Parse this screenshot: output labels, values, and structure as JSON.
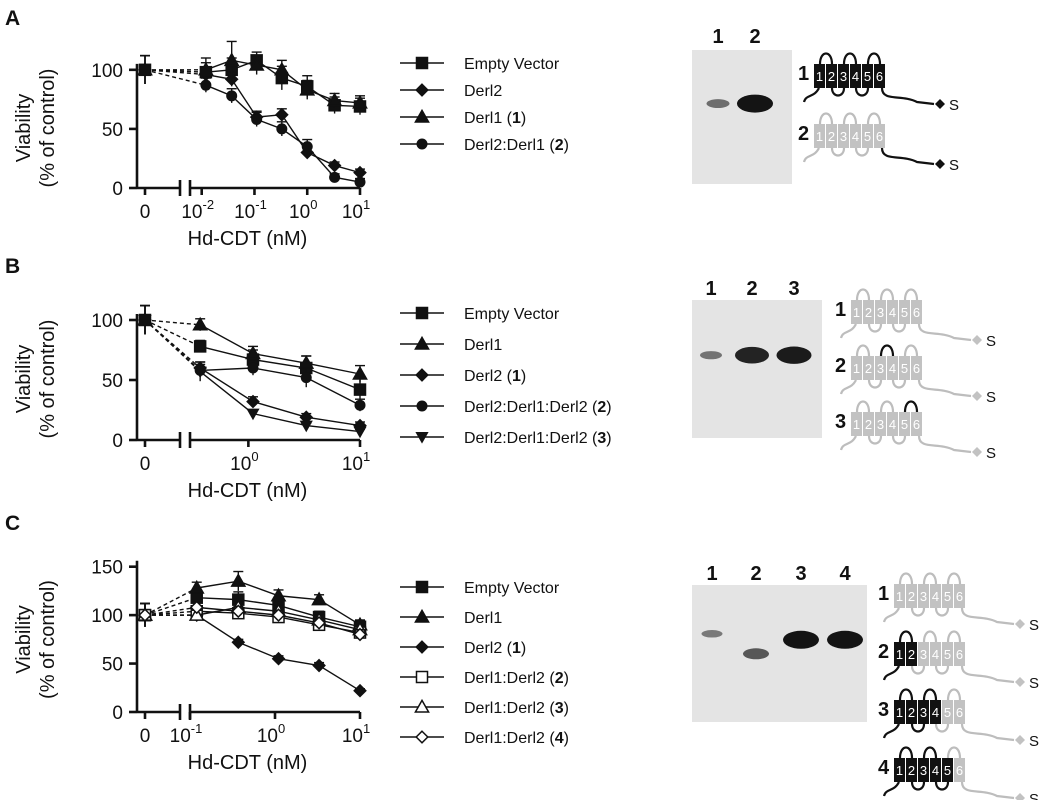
{
  "colors": {
    "dark": "#111111",
    "light": "#c2c2c2",
    "light_stroke": "#bdbdbd",
    "blot_bg": "#e4e4e4",
    "band": "#141414"
  },
  "chart_data": [
    {
      "panel": "A",
      "type": "line",
      "ylabel_lines": [
        "Viability",
        "(% of control)"
      ],
      "xlabel": "Hd-CDT (nM)",
      "xscale": "log",
      "xlim": [
        0.006,
        10
      ],
      "ylim": [
        0,
        110
      ],
      "yticks": [
        0,
        50,
        100
      ],
      "xticks": [
        {
          "v": 0.01,
          "base": "10",
          "exp": "-2"
        },
        {
          "v": 0.1,
          "base": "10",
          "exp": "-1"
        },
        {
          "v": 1,
          "base": "10",
          "exp": "0"
        },
        {
          "v": 10,
          "base": "10",
          "exp": "1"
        }
      ],
      "zero_label": "0",
      "x": [
        0.012,
        0.037,
        0.11,
        0.33,
        1.0,
        3.3,
        10
      ],
      "series": [
        {
          "label": "Empty Vector",
          "marker": "square",
          "zero": 100,
          "values": [
            98,
            100,
            108,
            93,
            86,
            70,
            69
          ],
          "err": [
            8,
            10,
            7,
            10,
            9,
            7,
            7
          ]
        },
        {
          "label": "Derl2",
          "marker": "diamond",
          "zero": 100,
          "values": [
            96,
            92,
            60,
            62,
            30,
            19,
            13
          ],
          "err": [
            5,
            6,
            5,
            5,
            5,
            3,
            3
          ]
        },
        {
          "label": "Derl1 (",
          "label_bold": "1",
          "label_end": ")",
          "marker": "triangle",
          "zero": 100,
          "values": [
            100,
            108,
            104,
            100,
            83,
            74,
            72
          ],
          "err": [
            10,
            16,
            8,
            8,
            8,
            6,
            6
          ]
        },
        {
          "label": "Derl2:Derl1 (",
          "label_bold": "2",
          "label_end": ")",
          "marker": "circle",
          "zero": 100,
          "values": [
            87,
            78,
            58,
            50,
            35,
            9,
            5
          ],
          "err": [
            6,
            6,
            6,
            6,
            6,
            3,
            3
          ]
        }
      ],
      "blot": {
        "lanes": [
          "1",
          "2"
        ],
        "bands": [
          0.35,
          1.0
        ]
      },
      "constructs": [
        {
          "num": "1",
          "tm": [
            "1",
            "2",
            "3",
            "4",
            "5",
            "6"
          ],
          "dark_tm": [
            1,
            2,
            3,
            4,
            5,
            6
          ],
          "dark_loops": [
            1,
            2,
            3,
            4,
            5,
            6
          ],
          "dark_tail": true
        },
        {
          "num": "2",
          "tm": [
            "1",
            "2",
            "3",
            "4",
            "5",
            "6"
          ],
          "dark_tm": [],
          "dark_loops": [],
          "dark_tail": true
        }
      ],
      "tag": "S"
    },
    {
      "panel": "B",
      "type": "line",
      "ylabel_lines": [
        "Viability",
        "(% of control)"
      ],
      "xlabel": "Hd-CDT (nM)",
      "xscale": "log",
      "xlim": [
        0.3,
        10
      ],
      "ylim": [
        0,
        110
      ],
      "yticks": [
        0,
        50,
        100
      ],
      "xticks": [
        {
          "v": 1,
          "base": "10",
          "exp": "0"
        },
        {
          "v": 10,
          "base": "10",
          "exp": "1"
        }
      ],
      "zero_label": "0",
      "x": [
        0.37,
        1.1,
        3.3,
        10
      ],
      "series": [
        {
          "label": "Empty Vector",
          "marker": "square",
          "zero": 100,
          "values": [
            78,
            67,
            60,
            42
          ],
          "err": [
            5,
            8,
            10,
            9
          ]
        },
        {
          "label": "Derl1",
          "marker": "triangle",
          "zero": 100,
          "values": [
            96,
            72,
            64,
            55
          ],
          "err": [
            5,
            6,
            6,
            7
          ]
        },
        {
          "label": "Derl2 (",
          "label_bold": "1",
          "label_end": ")",
          "marker": "diamond",
          "zero": 100,
          "values": [
            60,
            32,
            19,
            12
          ],
          "err": [
            5,
            4,
            3,
            3
          ]
        },
        {
          "label": "Derl2:Derl1:Derl2 (",
          "label_bold": "2",
          "label_end": ")",
          "marker": "circle",
          "zero": 100,
          "values": [
            58,
            60,
            52,
            29
          ],
          "err": [
            5,
            6,
            8,
            5
          ]
        },
        {
          "label": "Derl2:Derl1:Derl2 (",
          "label_bold": "3",
          "label_end": ")",
          "marker": "tri-down",
          "zero": 100,
          "values": [
            57,
            22,
            12,
            7
          ],
          "err": [
            8,
            3,
            2,
            2
          ]
        }
      ],
      "blot": {
        "lanes": [
          "1",
          "2",
          "3"
        ],
        "bands": [
          0.3,
          0.9,
          0.95
        ]
      },
      "constructs": [
        {
          "num": "1",
          "tm": [
            "1",
            "2",
            "3",
            "4",
            "5",
            "6"
          ],
          "dark_tm": [],
          "dark_loops": [],
          "dark_tail": false
        },
        {
          "num": "2",
          "tm": [
            "1",
            "2",
            "3",
            "4",
            "5",
            "6"
          ],
          "dark_tm": [],
          "dark_loops": [
            3
          ],
          "dark_tail": false
        },
        {
          "num": "3",
          "tm": [
            "1",
            "2",
            "3",
            "4",
            "5",
            "6"
          ],
          "dark_tm": [],
          "dark_loops": [
            5
          ],
          "dark_tail": false
        }
      ],
      "tag": "S"
    },
    {
      "panel": "C",
      "type": "line",
      "ylabel_lines": [
        "Viability",
        "(% of control)"
      ],
      "xlabel": "Hd-CDT (nM)",
      "xscale": "log",
      "xlim": [
        0.1,
        10
      ],
      "ylim": [
        0,
        160
      ],
      "yticks": [
        0,
        50,
        100,
        150
      ],
      "xticks": [
        {
          "v": 0.1,
          "base": "10",
          "exp": "-1"
        },
        {
          "v": 1,
          "base": "10",
          "exp": "0"
        },
        {
          "v": 10,
          "base": "10",
          "exp": "1"
        }
      ],
      "zero_label": "0",
      "x": [
        0.12,
        0.37,
        1.1,
        3.3,
        10
      ],
      "series": [
        {
          "label": "Empty Vector",
          "marker": "square",
          "zero": 100,
          "values": [
            118,
            116,
            110,
            98,
            88
          ],
          "err": [
            8,
            8,
            6,
            6,
            6
          ]
        },
        {
          "label": "Derl1",
          "marker": "triangle",
          "zero": 100,
          "values": [
            128,
            135,
            120,
            116,
            90
          ],
          "err": [
            6,
            10,
            6,
            5,
            5
          ]
        },
        {
          "label": "Derl2 (",
          "label_bold": "1",
          "label_end": ")",
          "marker": "diamond",
          "zero": 100,
          "values": [
            100,
            72,
            55,
            48,
            22
          ],
          "err": [
            4,
            3,
            3,
            3,
            2
          ]
        },
        {
          "label": "Derl1:Derl2 (",
          "label_bold": "2",
          "label_end": ")",
          "marker": "open-square",
          "zero": 100,
          "values": [
            104,
            102,
            98,
            90,
            82
          ],
          "err": [
            5,
            5,
            5,
            5,
            5
          ]
        },
        {
          "label": "Derl1:Derl2 (",
          "label_bold": "3",
          "label_end": ")",
          "marker": "open-triangle",
          "zero": 100,
          "values": [
            100,
            108,
            104,
            95,
            85
          ],
          "err": [
            5,
            5,
            5,
            5,
            5
          ]
        },
        {
          "label": "Derl1:Derl2 (",
          "label_bold": "4",
          "label_end": ")",
          "marker": "open-diamond",
          "zero": 100,
          "values": [
            108,
            104,
            100,
            92,
            80
          ],
          "err": [
            5,
            5,
            5,
            5,
            5
          ]
        }
      ],
      "blot": {
        "lanes": [
          "1",
          "2",
          "3",
          "4"
        ],
        "bands": [
          0.25,
          0.5,
          1.0,
          1.0
        ]
      },
      "constructs": [
        {
          "num": "1",
          "tm": [
            "1",
            "2",
            "3",
            "4",
            "5",
            "6"
          ],
          "dark_tm": [],
          "dark_loops": [],
          "dark_tail": false
        },
        {
          "num": "2",
          "tm": [
            "1",
            "2",
            "3",
            "4",
            "5",
            "6"
          ],
          "dark_tm": [
            1,
            2
          ],
          "dark_loops": [
            1
          ],
          "dark_tail": false
        },
        {
          "num": "3",
          "tm": [
            "1",
            "2",
            "3",
            "4",
            "5",
            "6"
          ],
          "dark_tm": [
            1,
            2,
            3,
            4
          ],
          "dark_loops": [
            1,
            2,
            3
          ],
          "dark_tail": false
        },
        {
          "num": "4",
          "tm": [
            "1",
            "2",
            "3",
            "4",
            "5",
            "6"
          ],
          "dark_tm": [
            1,
            2,
            3,
            4,
            5
          ],
          "dark_loops": [
            1,
            2,
            3,
            4
          ],
          "dark_tail": false
        }
      ],
      "tag": "S"
    }
  ]
}
